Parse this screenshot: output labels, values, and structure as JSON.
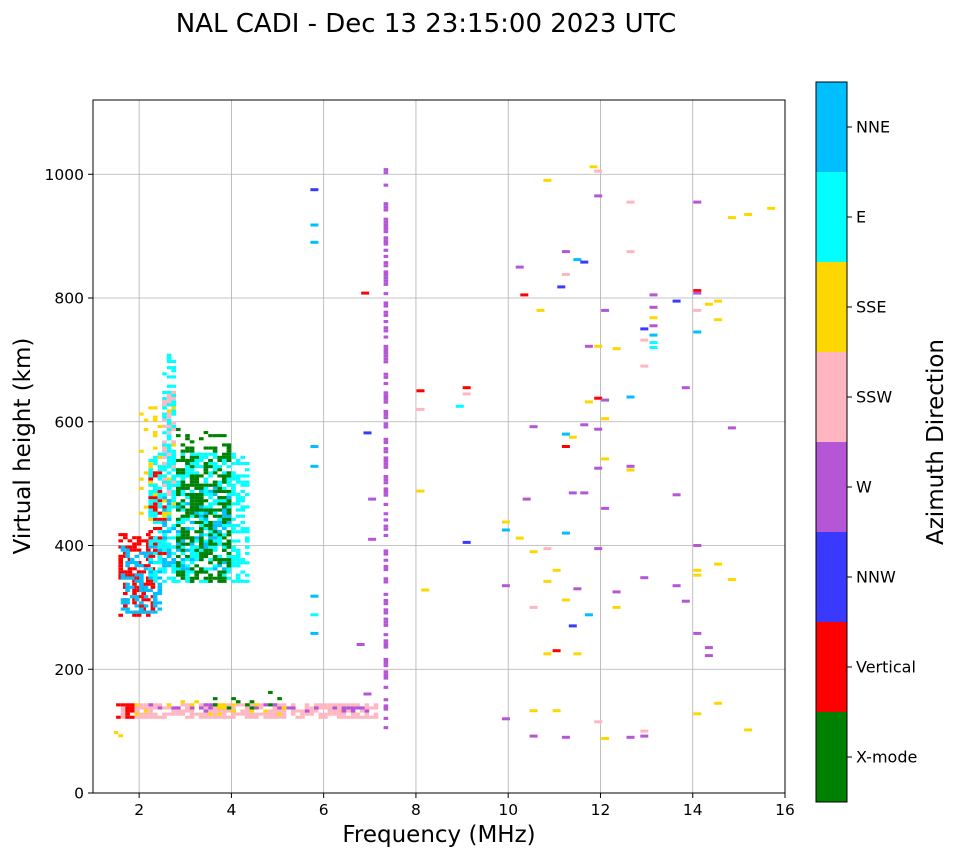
{
  "chart_data": {
    "type": "scatter",
    "title": "NAL CADI - Dec 13 23:15:00 2023 UTC",
    "xlabel": "Frequency (MHz)",
    "ylabel": "Virtual height (km)",
    "xlim": [
      1,
      16
    ],
    "ylim": [
      0,
      1120
    ],
    "xticks": [
      2,
      4,
      6,
      8,
      10,
      12,
      14,
      16
    ],
    "yticks": [
      0,
      200,
      400,
      600,
      800,
      1000
    ],
    "grid": true,
    "colorbar": {
      "title": "Azimuth Direction",
      "categories": [
        {
          "name": "X-mode",
          "color": "#008000"
        },
        {
          "name": "Vertical",
          "color": "#ff0000"
        },
        {
          "name": "NNW",
          "color": "#3a3aff"
        },
        {
          "name": "W",
          "color": "#b456d6"
        },
        {
          "name": "SSW",
          "color": "#ffb6c1"
        },
        {
          "name": "SSE",
          "color": "#ffd700"
        },
        {
          "name": "E",
          "color": "#00ffff"
        },
        {
          "name": "NNE",
          "color": "#00bfff"
        }
      ]
    },
    "echo_clusters": [
      {
        "category": "SSW",
        "fmin": 1.6,
        "fmax": 7.2,
        "hmin": 122,
        "hmax": 145,
        "density": 0.75
      },
      {
        "category": "W",
        "fmin": 2.2,
        "fmax": 7.2,
        "hmin": 128,
        "hmax": 145,
        "density": 0.22
      },
      {
        "category": "SSE",
        "fmin": 1.6,
        "fmax": 5.5,
        "hmin": 125,
        "hmax": 150,
        "density": 0.1
      },
      {
        "category": "X-mode",
        "fmin": 3.5,
        "fmax": 5.3,
        "hmin": 135,
        "hmax": 165,
        "density": 0.1
      },
      {
        "category": "Vertical",
        "fmin": 1.5,
        "fmax": 1.85,
        "hmin": 118,
        "hmax": 145,
        "density": 0.7
      },
      {
        "category": "SSE",
        "fmin": 1.45,
        "fmax": 1.6,
        "hmin": 88,
        "hmax": 100,
        "density": 0.9
      },
      {
        "category": "Vertical",
        "fmin": 1.55,
        "fmax": 2.3,
        "hmin": 285,
        "hmax": 420,
        "density": 0.55
      },
      {
        "category": "Vertical",
        "fmin": 2.2,
        "fmax": 2.6,
        "hmin": 380,
        "hmax": 520,
        "density": 0.45
      },
      {
        "category": "NNE",
        "fmin": 1.6,
        "fmax": 2.5,
        "hmin": 290,
        "hmax": 400,
        "density": 0.4
      },
      {
        "category": "E",
        "fmin": 2.2,
        "fmax": 4.4,
        "hmin": 340,
        "hmax": 550,
        "density": 0.5
      },
      {
        "category": "NNE",
        "fmin": 2.5,
        "fmax": 4.0,
        "hmin": 360,
        "hmax": 500,
        "density": 0.22
      },
      {
        "category": "X-mode",
        "fmin": 2.8,
        "fmax": 4.0,
        "hmin": 340,
        "hmax": 590,
        "density": 0.35
      },
      {
        "category": "SSE",
        "fmin": 2.0,
        "fmax": 2.8,
        "hmin": 440,
        "hmax": 640,
        "density": 0.12
      },
      {
        "category": "E",
        "fmin": 2.5,
        "fmax": 2.8,
        "hmin": 480,
        "hmax": 710,
        "density": 0.45
      },
      {
        "category": "SSW",
        "fmin": 2.5,
        "fmax": 2.75,
        "hmin": 480,
        "hmax": 650,
        "density": 0.25
      },
      {
        "category": "W",
        "fmin": 7.3,
        "fmax": 7.4,
        "hmin": 100,
        "hmax": 1010,
        "density": 0.55
      }
    ],
    "echo_points": [
      {
        "f": 5.8,
        "h": 975,
        "category": "NNW"
      },
      {
        "f": 5.8,
        "h": 918,
        "category": "NNE"
      },
      {
        "f": 5.8,
        "h": 890,
        "category": "NNE"
      },
      {
        "f": 5.8,
        "h": 560,
        "category": "NNE"
      },
      {
        "f": 5.8,
        "h": 528,
        "category": "NNE"
      },
      {
        "f": 5.8,
        "h": 318,
        "category": "NNE"
      },
      {
        "f": 5.8,
        "h": 288,
        "category": "E"
      },
      {
        "f": 5.8,
        "h": 258,
        "category": "NNE"
      },
      {
        "f": 6.9,
        "h": 808,
        "category": "Vertical"
      },
      {
        "f": 6.95,
        "h": 582,
        "category": "NNW"
      },
      {
        "f": 7.05,
        "h": 475,
        "category": "W"
      },
      {
        "f": 7.05,
        "h": 410,
        "category": "W"
      },
      {
        "f": 6.8,
        "h": 240,
        "category": "W"
      },
      {
        "f": 6.95,
        "h": 160,
        "category": "W"
      },
      {
        "f": 8.1,
        "h": 650,
        "category": "Vertical"
      },
      {
        "f": 8.1,
        "h": 620,
        "category": "SSW"
      },
      {
        "f": 8.1,
        "h": 488,
        "category": "SSE"
      },
      {
        "f": 8.2,
        "h": 328,
        "category": "SSE"
      },
      {
        "f": 8.95,
        "h": 625,
        "category": "E"
      },
      {
        "f": 9.1,
        "h": 655,
        "category": "Vertical"
      },
      {
        "f": 9.1,
        "h": 645,
        "category": "SSW"
      },
      {
        "f": 9.1,
        "h": 405,
        "category": "NNW"
      },
      {
        "f": 9.95,
        "h": 438,
        "category": "SSE"
      },
      {
        "f": 9.95,
        "h": 425,
        "category": "NNE"
      },
      {
        "f": 9.95,
        "h": 335,
        "category": "W"
      },
      {
        "f": 9.95,
        "h": 120,
        "category": "W"
      },
      {
        "f": 10.25,
        "h": 850,
        "category": "W"
      },
      {
        "f": 10.35,
        "h": 805,
        "category": "Vertical"
      },
      {
        "f": 10.4,
        "h": 475,
        "category": "W"
      },
      {
        "f": 10.25,
        "h": 412,
        "category": "SSE"
      },
      {
        "f": 10.55,
        "h": 592,
        "category": "W"
      },
      {
        "f": 10.55,
        "h": 390,
        "category": "SSE"
      },
      {
        "f": 10.55,
        "h": 300,
        "category": "SSW"
      },
      {
        "f": 10.55,
        "h": 133,
        "category": "SSE"
      },
      {
        "f": 10.55,
        "h": 92,
        "category": "W"
      },
      {
        "f": 10.7,
        "h": 780,
        "category": "SSE"
      },
      {
        "f": 10.85,
        "h": 990,
        "category": "SSE"
      },
      {
        "f": 10.85,
        "h": 395,
        "category": "SSW"
      },
      {
        "f": 10.85,
        "h": 342,
        "category": "SSE"
      },
      {
        "f": 10.85,
        "h": 225,
        "category": "SSE"
      },
      {
        "f": 11.05,
        "h": 360,
        "category": "SSE"
      },
      {
        "f": 11.05,
        "h": 230,
        "category": "Vertical"
      },
      {
        "f": 11.05,
        "h": 133,
        "category": "SSE"
      },
      {
        "f": 11.15,
        "h": 818,
        "category": "NNW"
      },
      {
        "f": 11.25,
        "h": 875,
        "category": "W"
      },
      {
        "f": 11.25,
        "h": 838,
        "category": "SSW"
      },
      {
        "f": 11.25,
        "h": 580,
        "category": "NNE"
      },
      {
        "f": 11.25,
        "h": 560,
        "category": "Vertical"
      },
      {
        "f": 11.25,
        "h": 420,
        "category": "NNE"
      },
      {
        "f": 11.25,
        "h": 312,
        "category": "SSE"
      },
      {
        "f": 11.25,
        "h": 90,
        "category": "W"
      },
      {
        "f": 11.4,
        "h": 575,
        "category": "SSE"
      },
      {
        "f": 11.4,
        "h": 485,
        "category": "W"
      },
      {
        "f": 11.4,
        "h": 270,
        "category": "NNW"
      },
      {
        "f": 11.5,
        "h": 862,
        "category": "NNE"
      },
      {
        "f": 11.5,
        "h": 330,
        "category": "W"
      },
      {
        "f": 11.5,
        "h": 225,
        "category": "SSE"
      },
      {
        "f": 11.65,
        "h": 858,
        "category": "NNW"
      },
      {
        "f": 11.65,
        "h": 595,
        "category": "W"
      },
      {
        "f": 11.65,
        "h": 485,
        "category": "W"
      },
      {
        "f": 11.75,
        "h": 722,
        "category": "W"
      },
      {
        "f": 11.75,
        "h": 632,
        "category": "SSE"
      },
      {
        "f": 11.75,
        "h": 288,
        "category": "NNE"
      },
      {
        "f": 11.85,
        "h": 1012,
        "category": "SSE"
      },
      {
        "f": 11.95,
        "h": 1005,
        "category": "SSW"
      },
      {
        "f": 11.95,
        "h": 965,
        "category": "W"
      },
      {
        "f": 11.95,
        "h": 722,
        "category": "SSE"
      },
      {
        "f": 11.95,
        "h": 638,
        "category": "Vertical"
      },
      {
        "f": 11.95,
        "h": 588,
        "category": "W"
      },
      {
        "f": 11.95,
        "h": 525,
        "category": "W"
      },
      {
        "f": 11.95,
        "h": 395,
        "category": "W"
      },
      {
        "f": 11.95,
        "h": 115,
        "category": "SSW"
      },
      {
        "f": 12.1,
        "h": 780,
        "category": "W"
      },
      {
        "f": 12.1,
        "h": 635,
        "category": "W"
      },
      {
        "f": 12.1,
        "h": 605,
        "category": "SSE"
      },
      {
        "f": 12.1,
        "h": 540,
        "category": "SSE"
      },
      {
        "f": 12.1,
        "h": 460,
        "category": "W"
      },
      {
        "f": 12.1,
        "h": 88,
        "category": "SSE"
      },
      {
        "f": 12.35,
        "h": 718,
        "category": "SSE"
      },
      {
        "f": 12.35,
        "h": 325,
        "category": "W"
      },
      {
        "f": 12.35,
        "h": 300,
        "category": "SSE"
      },
      {
        "f": 12.65,
        "h": 955,
        "category": "SSW"
      },
      {
        "f": 12.65,
        "h": 875,
        "category": "SSW"
      },
      {
        "f": 12.65,
        "h": 640,
        "category": "NNE"
      },
      {
        "f": 12.65,
        "h": 528,
        "category": "W"
      },
      {
        "f": 12.65,
        "h": 522,
        "category": "SSE"
      },
      {
        "f": 12.65,
        "h": 90,
        "category": "W"
      },
      {
        "f": 12.95,
        "h": 750,
        "category": "NNW"
      },
      {
        "f": 12.95,
        "h": 732,
        "category": "SSW"
      },
      {
        "f": 12.95,
        "h": 690,
        "category": "SSW"
      },
      {
        "f": 12.95,
        "h": 348,
        "category": "W"
      },
      {
        "f": 12.95,
        "h": 100,
        "category": "SSW"
      },
      {
        "f": 12.95,
        "h": 92,
        "category": "W"
      },
      {
        "f": 13.15,
        "h": 805,
        "category": "W"
      },
      {
        "f": 13.15,
        "h": 785,
        "category": "W"
      },
      {
        "f": 13.15,
        "h": 768,
        "category": "SSE"
      },
      {
        "f": 13.15,
        "h": 755,
        "category": "W"
      },
      {
        "f": 13.15,
        "h": 740,
        "category": "NNE"
      },
      {
        "f": 13.15,
        "h": 728,
        "category": "E"
      },
      {
        "f": 13.15,
        "h": 720,
        "category": "E"
      },
      {
        "f": 13.65,
        "h": 795,
        "category": "NNW"
      },
      {
        "f": 13.65,
        "h": 482,
        "category": "W"
      },
      {
        "f": 13.65,
        "h": 335,
        "category": "W"
      },
      {
        "f": 13.85,
        "h": 655,
        "category": "W"
      },
      {
        "f": 13.85,
        "h": 310,
        "category": "W"
      },
      {
        "f": 14.1,
        "h": 955,
        "category": "W"
      },
      {
        "f": 14.1,
        "h": 812,
        "category": "Vertical"
      },
      {
        "f": 14.1,
        "h": 808,
        "category": "W"
      },
      {
        "f": 14.1,
        "h": 780,
        "category": "SSW"
      },
      {
        "f": 14.1,
        "h": 745,
        "category": "NNE"
      },
      {
        "f": 14.1,
        "h": 400,
        "category": "W"
      },
      {
        "f": 14.1,
        "h": 360,
        "category": "SSE"
      },
      {
        "f": 14.1,
        "h": 352,
        "category": "SSE"
      },
      {
        "f": 14.1,
        "h": 258,
        "category": "W"
      },
      {
        "f": 14.1,
        "h": 128,
        "category": "SSE"
      },
      {
        "f": 14.35,
        "h": 790,
        "category": "SSE"
      },
      {
        "f": 14.35,
        "h": 235,
        "category": "W"
      },
      {
        "f": 14.35,
        "h": 222,
        "category": "W"
      },
      {
        "f": 14.55,
        "h": 795,
        "category": "SSE"
      },
      {
        "f": 14.55,
        "h": 765,
        "category": "SSE"
      },
      {
        "f": 14.55,
        "h": 370,
        "category": "SSE"
      },
      {
        "f": 14.55,
        "h": 145,
        "category": "SSE"
      },
      {
        "f": 14.85,
        "h": 930,
        "category": "SSE"
      },
      {
        "f": 14.85,
        "h": 590,
        "category": "W"
      },
      {
        "f": 14.85,
        "h": 345,
        "category": "SSE"
      },
      {
        "f": 15.2,
        "h": 935,
        "category": "SSE"
      },
      {
        "f": 15.2,
        "h": 102,
        "category": "SSE"
      },
      {
        "f": 15.7,
        "h": 945,
        "category": "SSE"
      }
    ]
  }
}
